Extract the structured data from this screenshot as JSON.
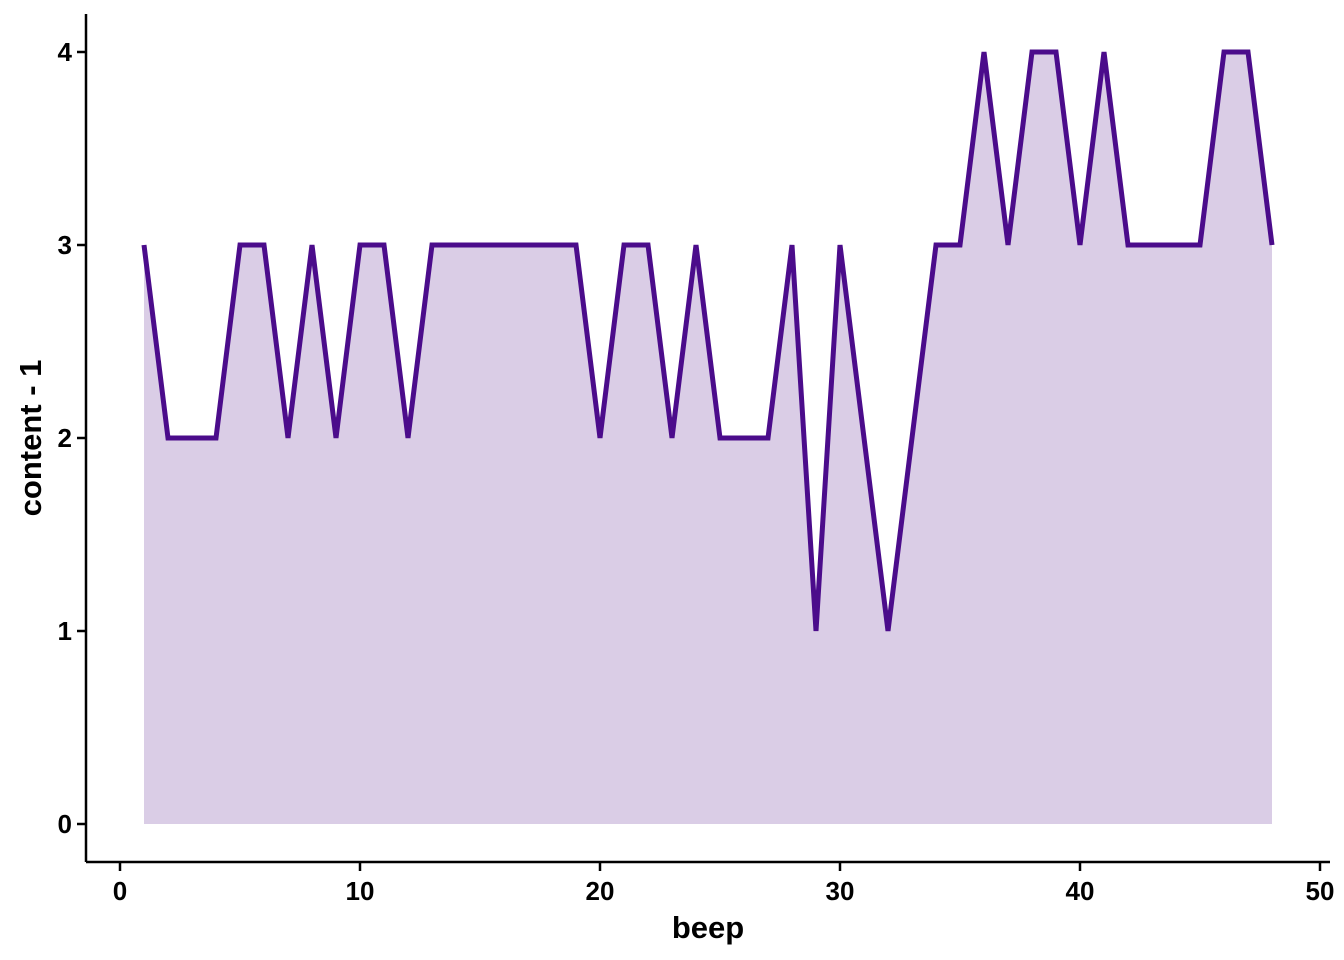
{
  "chart_data": {
    "type": "area",
    "xlabel": "beep",
    "ylabel": "content - 1",
    "xlim": [
      -1.5,
      50
    ],
    "ylim": [
      -0.2,
      4.2
    ],
    "x_ticks": [
      0,
      10,
      20,
      30,
      40,
      50
    ],
    "x_tick_labels": [
      "0",
      "10",
      "20",
      "30",
      "40",
      "50"
    ],
    "y_ticks": [
      0,
      1,
      2,
      3,
      4
    ],
    "y_tick_labels": [
      "0",
      "1",
      "2",
      "3",
      "4"
    ],
    "grid": false,
    "legend": "none",
    "line_color": "#4B0C8B",
    "fill_color": "#DACDE6",
    "x": [
      1,
      2,
      3,
      4,
      5,
      6,
      7,
      8,
      9,
      10,
      11,
      12,
      13,
      14,
      15,
      16,
      17,
      18,
      19,
      20,
      21,
      22,
      23,
      24,
      25,
      26,
      27,
      28,
      29,
      30,
      31,
      32,
      33,
      34,
      35,
      36,
      37,
      38,
      39,
      40,
      41,
      42,
      43,
      44,
      45,
      46,
      47,
      48
    ],
    "y": [
      3,
      2,
      2,
      2,
      3,
      3,
      2,
      3,
      2,
      3,
      3,
      2,
      3,
      3,
      3,
      3,
      3,
      3,
      3,
      2,
      3,
      3,
      2,
      3,
      2,
      2,
      2,
      3,
      1,
      3,
      2,
      1,
      2,
      3,
      3,
      4,
      3,
      4,
      4,
      3,
      4,
      3,
      3,
      3,
      3,
      4,
      4,
      3
    ]
  }
}
